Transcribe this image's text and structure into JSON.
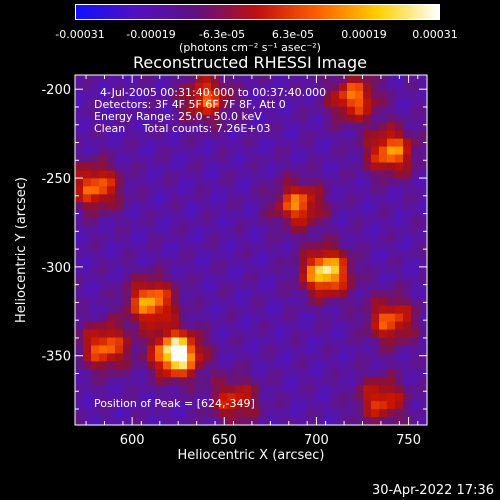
{
  "colorbar": {
    "ticks": [
      "-0.00031",
      "-0.00019",
      "-6.3e-05",
      "6.3e-05",
      "0.00019",
      "0.00031"
    ],
    "units": "(photons cm⁻² s⁻¹ asec⁻²)",
    "colors": [
      "#1010ff",
      "#5010c0",
      "#601080",
      "#c01010",
      "#ff6000",
      "#ffd000",
      "#ffffff"
    ]
  },
  "chart_data": {
    "type": "heatmap",
    "title": "Reconstructed RHESSI Image",
    "xlabel": "Heliocentric X (arcsec)",
    "ylabel": "Heliocentric Y (arcsec)",
    "xlim": [
      569,
      760
    ],
    "ylim": [
      -389,
      -192
    ],
    "xticks": [
      600,
      650,
      700,
      750
    ],
    "yticks": [
      -200,
      -250,
      -300,
      -350
    ],
    "z_range": [
      -0.00031,
      0.00031
    ],
    "peak": {
      "x": 624,
      "y": -349
    },
    "annotations": [
      "4-Jul-2005 00:31:40.000 to 00:37:40.000",
      "Detectors: 3F 4F 5F 6F 7F 8F, Att 0",
      "Energy Range: 25.0 - 50.0 keV",
      "Clean     Total counts: 7.26E+03"
    ],
    "peak_label": "Position of Peak = [624,-349]",
    "bright_sources": [
      {
        "x": 624,
        "y": -349,
        "level": 1.0
      },
      {
        "x": 610,
        "y": -320,
        "level": 0.7
      },
      {
        "x": 705,
        "y": -303,
        "level": 0.85
      },
      {
        "x": 690,
        "y": -265,
        "level": 0.6
      },
      {
        "x": 640,
        "y": -205,
        "level": 0.55
      },
      {
        "x": 580,
        "y": -255,
        "level": 0.6
      },
      {
        "x": 740,
        "y": -235,
        "level": 0.65
      },
      {
        "x": 720,
        "y": -205,
        "level": 0.6
      },
      {
        "x": 585,
        "y": -345,
        "level": 0.6
      },
      {
        "x": 740,
        "y": -330,
        "level": 0.55
      },
      {
        "x": 655,
        "y": -375,
        "level": 0.45
      },
      {
        "x": 735,
        "y": -375,
        "level": 0.5
      }
    ]
  },
  "timestamp": "30-Apr-2022 17:36"
}
